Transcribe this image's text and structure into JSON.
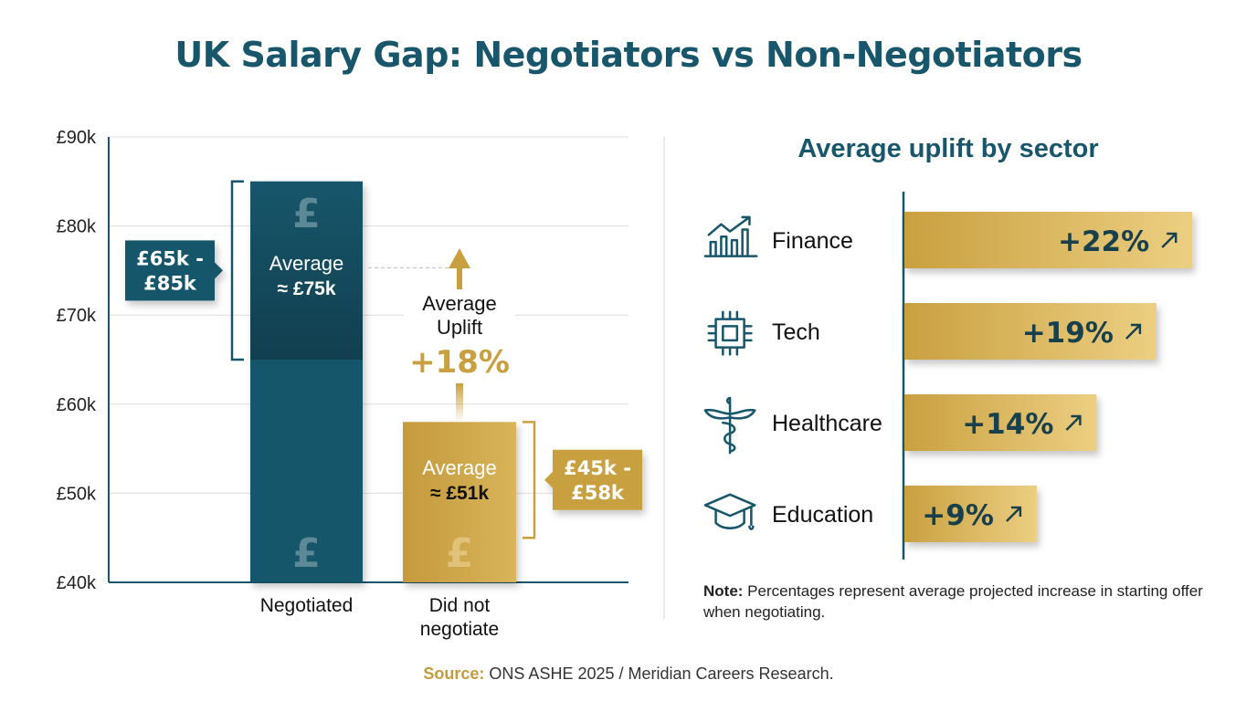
{
  "title": "UK Salary Gap: Negotiators vs Non-Negotiators",
  "colors": {
    "teal": "#17566b",
    "teal_dark": "#124556",
    "gold": "#c9a040",
    "gold_light": "#e8cb7a",
    "text": "#111111"
  },
  "chart_data": [
    {
      "type": "bar",
      "categories": [
        "Negotiated",
        "Did not negotiate"
      ],
      "category_lines": [
        [
          "Negotiated"
        ],
        [
          "Did not",
          "negotiate"
        ]
      ],
      "values": [
        85,
        58
      ],
      "ranges": [
        [
          65,
          85
        ],
        [
          45,
          58
        ]
      ],
      "range_labels": [
        [
          "£65k -",
          "£85k"
        ],
        [
          "£45k -",
          "£58k"
        ]
      ],
      "average_labels": [
        [
          "Average",
          "≈ £75k"
        ],
        [
          "Average",
          "≈ £51k"
        ]
      ],
      "averages": [
        75,
        51
      ],
      "bar_icon": "pound-sign-icon",
      "ylim": [
        40,
        90
      ],
      "yticks": [
        40,
        50,
        60,
        70,
        80,
        90
      ],
      "ytick_labels": [
        "£40k",
        "£50k",
        "£60k",
        "£70k",
        "£80k",
        "£90k"
      ],
      "grid": true,
      "annotation": {
        "lines": [
          "Average",
          "Uplift"
        ],
        "value": "+18%"
      }
    },
    {
      "type": "bar",
      "orientation": "horizontal",
      "title": "Average uplift by sector",
      "categories": [
        "Finance",
        "Tech",
        "Healthcare",
        "Education"
      ],
      "icons": [
        "chart-growth-icon",
        "microchip-icon",
        "caduceus-icon",
        "graduation-cap-icon"
      ],
      "values": [
        22,
        19,
        14,
        9
      ],
      "value_labels": [
        "+22%",
        "+19%",
        "+14%",
        "+9%"
      ]
    }
  ],
  "note": {
    "label": "Note:",
    "text": " Percentages represent average projected increase in starting offer when negotiating."
  },
  "source": {
    "label": "Source:",
    "text": " ONS ASHE 2025 / Meridian Careers Research."
  }
}
